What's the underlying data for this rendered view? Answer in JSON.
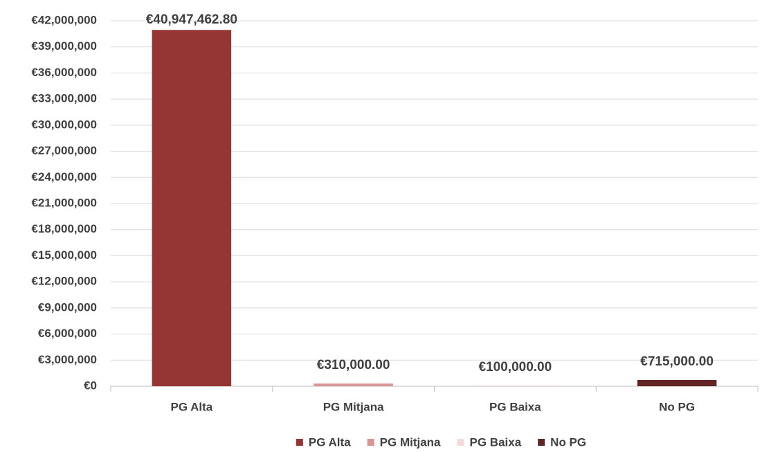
{
  "chart_data": {
    "type": "bar",
    "categories": [
      "PG Alta",
      "PG Mitjana",
      "PG Baixa",
      "No PG"
    ],
    "series": [
      {
        "name": "PG Alta",
        "color": "#943634",
        "values": [
          40947462.8,
          null,
          null,
          null
        ],
        "value_labels": [
          "€40,947,462.80",
          null,
          null,
          null
        ]
      },
      {
        "name": "PG Mitjana",
        "color": "#d99594",
        "values": [
          null,
          310000,
          null,
          null
        ],
        "value_labels": [
          null,
          "€310,000.00",
          null,
          null
        ]
      },
      {
        "name": "PG Baixa",
        "color": "#f2dcdb",
        "values": [
          null,
          null,
          100000,
          null
        ],
        "value_labels": [
          null,
          null,
          "€100,000.00",
          null
        ]
      },
      {
        "name": "No PG",
        "color": "#632523",
        "values": [
          null,
          null,
          null,
          715000
        ],
        "value_labels": [
          null,
          null,
          null,
          "€715,000.00"
        ]
      }
    ],
    "ylim": [
      0,
      42000000
    ],
    "yticks": [
      {
        "value": 0,
        "label": "€0"
      },
      {
        "value": 3000000,
        "label": "€3,000,000"
      },
      {
        "value": 6000000,
        "label": "€6,000,000"
      },
      {
        "value": 9000000,
        "label": "€9,000,000"
      },
      {
        "value": 12000000,
        "label": "€12,000,000"
      },
      {
        "value": 15000000,
        "label": "€15,000,000"
      },
      {
        "value": 18000000,
        "label": "€18,000,000"
      },
      {
        "value": 21000000,
        "label": "€21,000,000"
      },
      {
        "value": 24000000,
        "label": "€24,000,000"
      },
      {
        "value": 27000000,
        "label": "€27,000,000"
      },
      {
        "value": 30000000,
        "label": "€30,000,000"
      },
      {
        "value": 33000000,
        "label": "€33,000,000"
      },
      {
        "value": 36000000,
        "label": "€36,000,000"
      },
      {
        "value": 39000000,
        "label": "€39,000,000"
      },
      {
        "value": 42000000,
        "label": "€42,000,000"
      }
    ],
    "grid": true,
    "legend": "bottom"
  }
}
